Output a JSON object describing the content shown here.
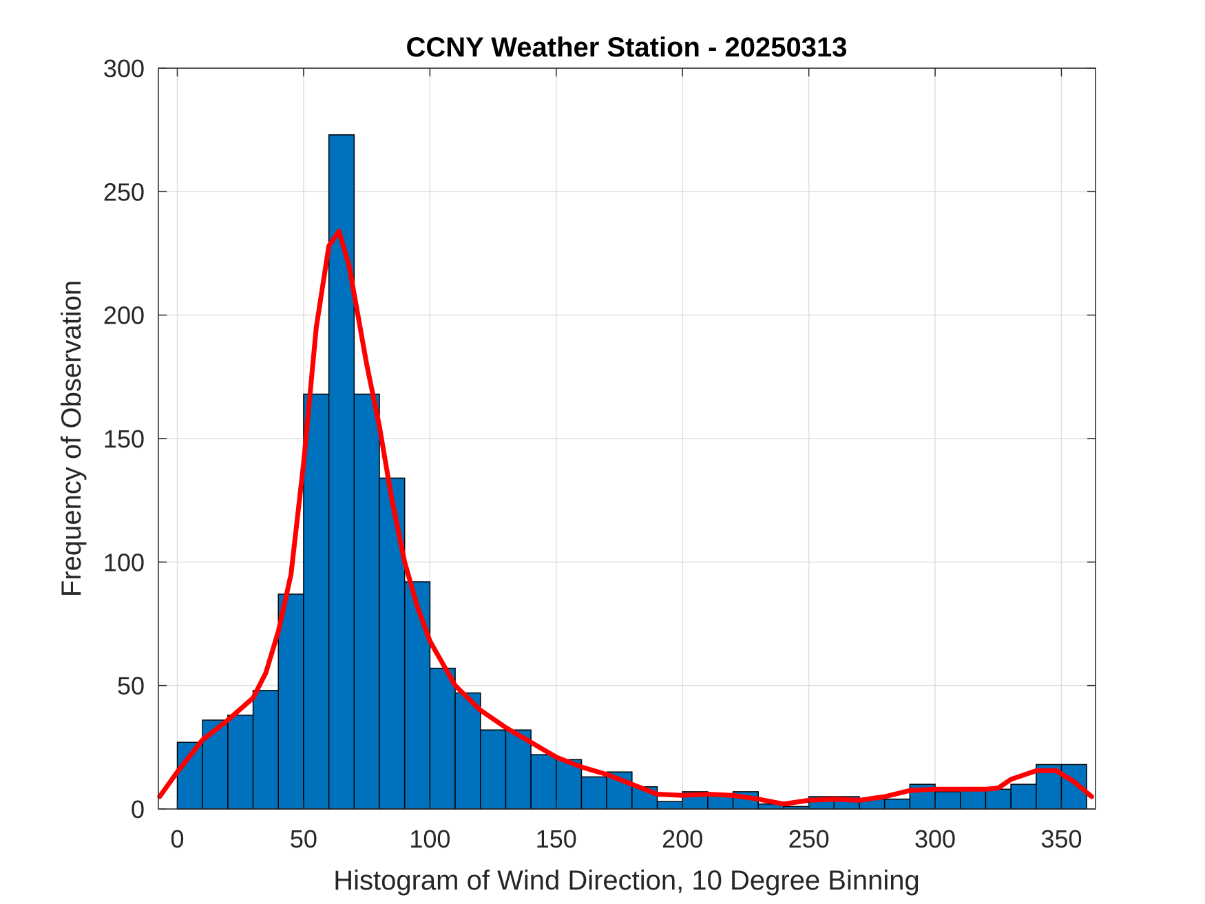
{
  "chart_data": {
    "type": "bar",
    "title": "CCNY Weather Station - 20250313",
    "xlabel": "Histogram of Wind Direction, 10 Degree Binning",
    "ylabel": "Frequency of Observation",
    "xlim": [
      -7.5,
      363.5
    ],
    "ylim": [
      0,
      300
    ],
    "xticks": [
      0,
      50,
      100,
      150,
      200,
      250,
      300,
      350
    ],
    "yticks": [
      0,
      50,
      100,
      150,
      200,
      250,
      300
    ],
    "grid": true,
    "bin_width": 10,
    "bin_edges_start": [
      0,
      10,
      20,
      30,
      40,
      50,
      60,
      70,
      80,
      90,
      100,
      110,
      120,
      130,
      140,
      150,
      160,
      170,
      180,
      190,
      200,
      210,
      220,
      230,
      240,
      250,
      260,
      270,
      280,
      290,
      300,
      310,
      320,
      330,
      340,
      350
    ],
    "values": [
      27,
      36,
      38,
      48,
      87,
      168,
      273,
      168,
      134,
      92,
      57,
      47,
      32,
      32,
      22,
      20,
      13,
      15,
      9,
      3,
      7,
      6,
      7,
      2,
      1,
      5,
      5,
      4,
      4,
      10,
      7,
      8,
      8,
      10,
      18,
      18
    ],
    "bar_color": "#0072BD",
    "fit_curve": {
      "color": "#FF0000",
      "x": [
        -7,
        0,
        10,
        20,
        30,
        35,
        40,
        45,
        50,
        55,
        60,
        64,
        68,
        75,
        80,
        85,
        90,
        95,
        100,
        110,
        120,
        130,
        140,
        150,
        160,
        170,
        180,
        190,
        200,
        210,
        220,
        230,
        240,
        250,
        260,
        270,
        280,
        290,
        300,
        310,
        320,
        325,
        330,
        340,
        348,
        355,
        362
      ],
      "y": [
        5,
        15,
        28,
        36,
        45,
        55,
        72,
        95,
        140,
        195,
        228,
        234,
        220,
        180,
        155,
        125,
        100,
        82,
        68,
        50,
        40,
        33,
        27,
        21,
        17,
        14,
        10,
        6,
        5.5,
        6,
        5.5,
        4,
        2,
        3.5,
        4,
        3.5,
        5,
        7.5,
        8,
        8,
        8,
        8.5,
        12,
        15.5,
        15.5,
        11,
        5
      ]
    }
  }
}
